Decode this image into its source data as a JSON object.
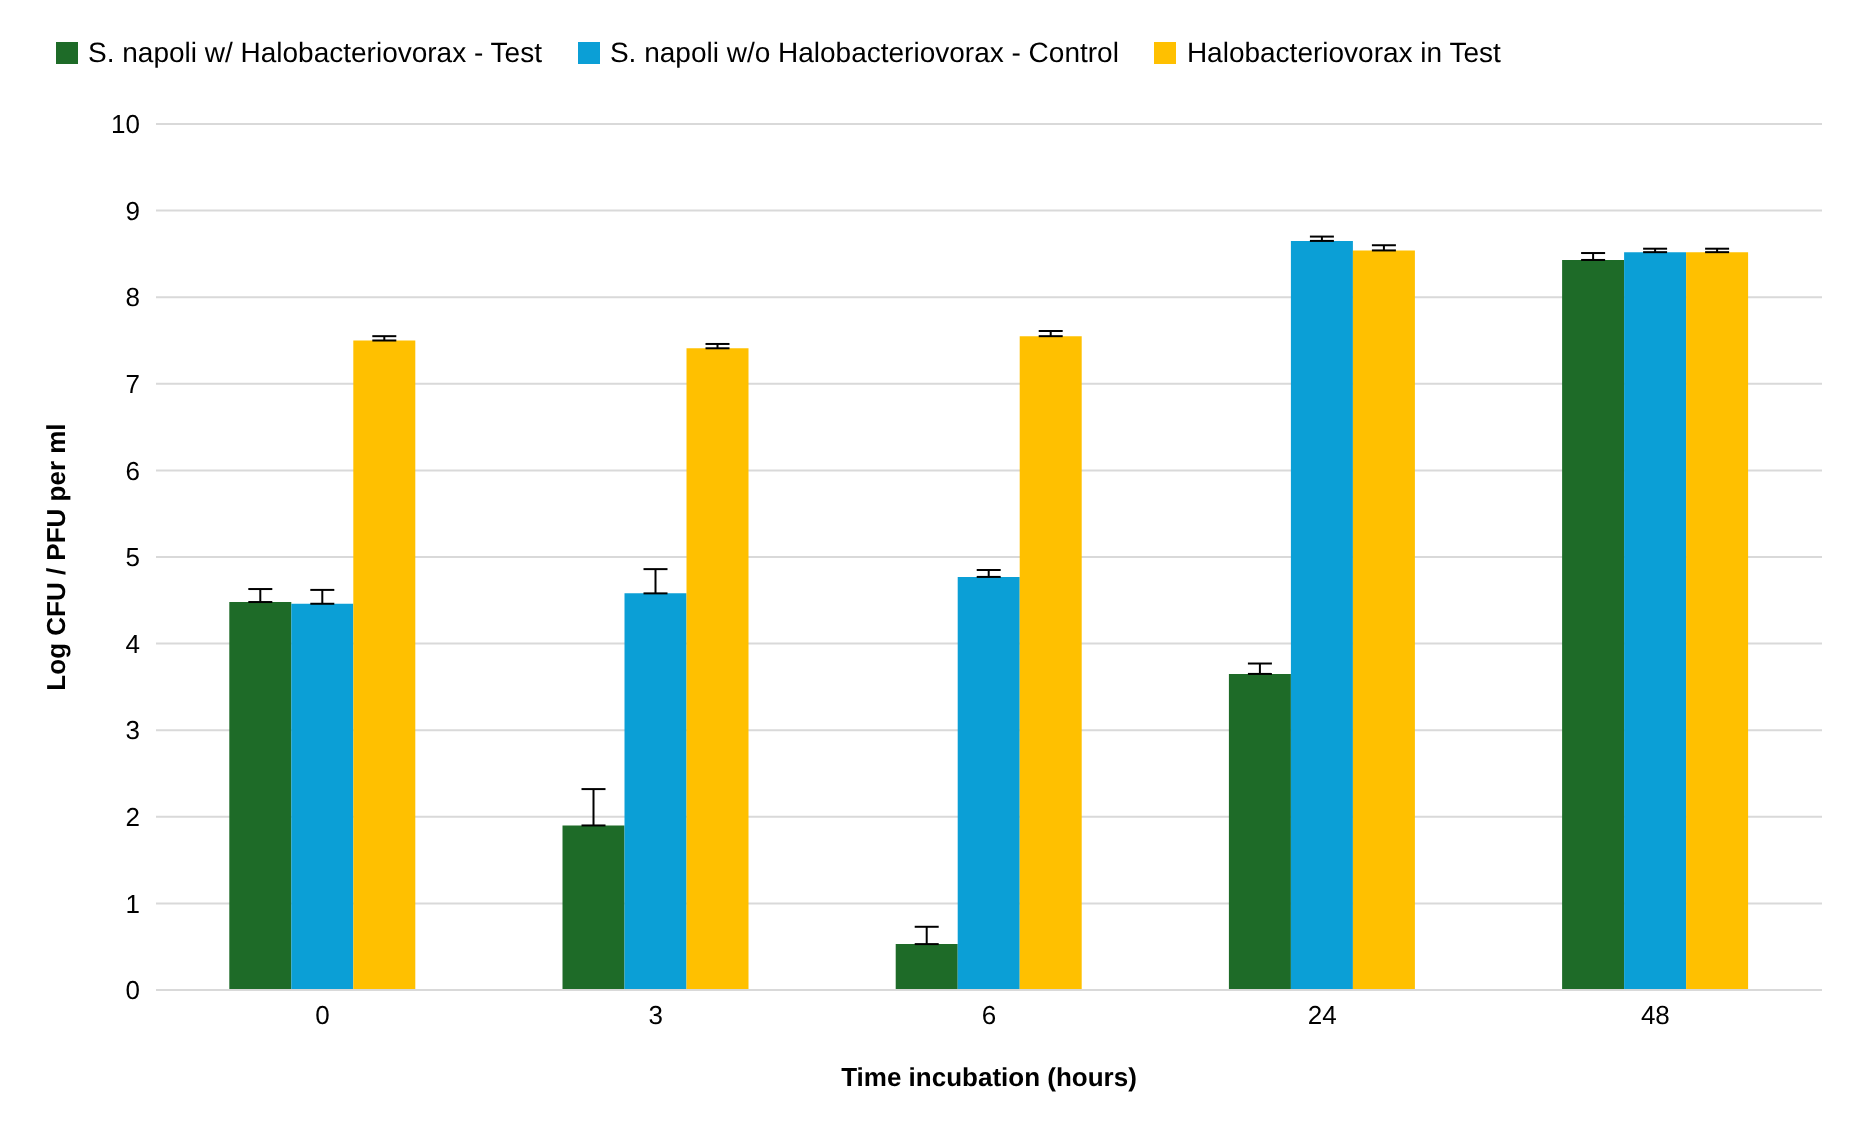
{
  "chart_data": {
    "type": "bar",
    "xlabel": "Time incubation (hours)",
    "ylabel": "Log CFU / PFU per ml",
    "categories": [
      "0",
      "3",
      "6",
      "24",
      "48"
    ],
    "series": [
      {
        "name": "S. napoli w/ Halobacteriovorax - Test",
        "color": "#1e6b28",
        "values": [
          4.48,
          1.9,
          0.53,
          3.65,
          8.43
        ],
        "errors": [
          [
            4.48,
            4.63
          ],
          [
            1.9,
            2.32
          ],
          [
            0.53,
            0.73
          ],
          [
            3.65,
            3.77
          ],
          [
            8.43,
            8.51
          ]
        ]
      },
      {
        "name": "S. napoli w/o Halobacteriovorax - Control",
        "color": "#0b9fd6",
        "values": [
          4.46,
          4.58,
          4.77,
          8.65,
          8.52
        ],
        "errors": [
          [
            4.46,
            4.62
          ],
          [
            4.58,
            4.86
          ],
          [
            4.77,
            4.85
          ],
          [
            8.65,
            8.7
          ],
          [
            8.52,
            8.56
          ]
        ]
      },
      {
        "name": "Halobacteriovorax in Test",
        "color": "#ffc000",
        "values": [
          7.5,
          7.41,
          7.55,
          8.54,
          8.52
        ],
        "errors": [
          [
            7.5,
            7.55
          ],
          [
            7.41,
            7.46
          ],
          [
            7.55,
            7.61
          ],
          [
            8.54,
            8.6
          ],
          [
            8.52,
            8.56
          ]
        ]
      }
    ],
    "ylim": [
      0,
      10
    ],
    "yticks": [
      0,
      1,
      2,
      3,
      4,
      5,
      6,
      7,
      8,
      9,
      10
    ],
    "grid": "y",
    "legend": "top"
  }
}
